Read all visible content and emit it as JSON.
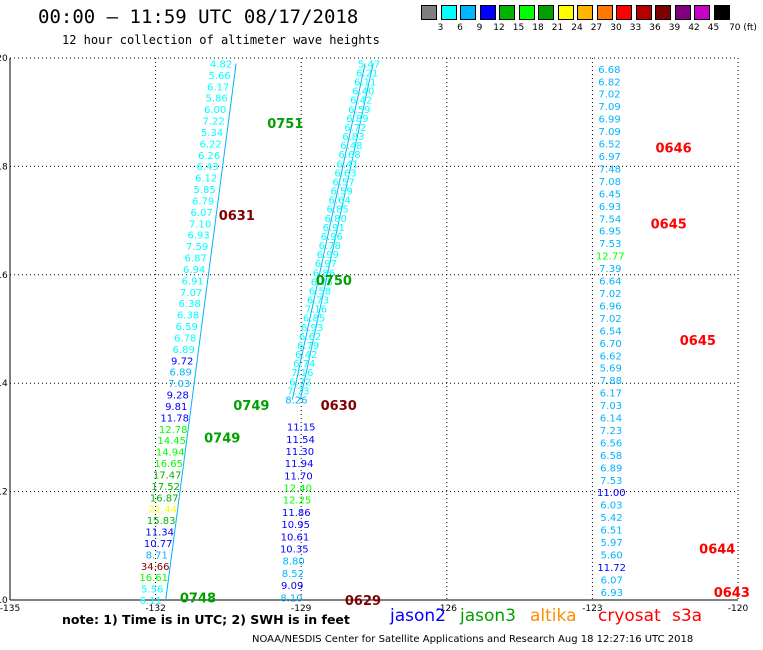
{
  "header": {
    "title": "00:00 – 11:59 UTC 08/17/2018",
    "subtitle": "12 hour collection of altimeter wave heights"
  },
  "legend": {
    "colors": [
      "#7f7f7f",
      "#00ffff",
      "#00b4ff",
      "#0000ff",
      "#00b400",
      "#00ff00",
      "#00a000",
      "#ffff00",
      "#ffb400",
      "#ff7800",
      "#ff0000",
      "#b40000",
      "#7f0000",
      "#800080",
      "#c800c8",
      "#000000"
    ],
    "labels": [
      "3",
      "6",
      "9",
      "12",
      "15",
      "18",
      "21",
      "24",
      "27",
      "30",
      "33",
      "36",
      "39",
      "42",
      "45",
      "70 (ft)"
    ]
  },
  "footer": {
    "note": "note: 1) Time is in UTC; 2) SWH is in feet",
    "satellites": [
      {
        "name": "jason2",
        "color": "#0000ff"
      },
      {
        "name": "jason3",
        "color": "#00a000"
      },
      {
        "name": "altika",
        "color": "#ff8c00"
      },
      {
        "name": "cryosat",
        "color": "#ff0000"
      },
      {
        "name": "s3a",
        "color": "#ff0000"
      }
    ],
    "credit": "NOAA/NESDIS Center for Satellite Applications and Research    Aug 18 12:27:16 UTC 2018"
  },
  "chart_data": {
    "type": "scatter",
    "title": "00:00 – 11:59 UTC 08/17/2018",
    "subtitle": "12 hour collection of altimeter wave heights",
    "xlim": [
      -135,
      -120
    ],
    "ylim": [
      10,
      20
    ],
    "xticks": [
      "-135",
      "-132",
      "-129",
      "-126",
      "-123",
      "-120"
    ],
    "yticks": [
      "10",
      "12",
      "14",
      "16",
      "18",
      "20"
    ],
    "grid": true,
    "tracks": [
      {
        "id": "A",
        "lon0": -130.65,
        "lat0": 19.9,
        "lon1": -132.1,
        "lat1": 10.0,
        "values": [
          "4.82",
          "5.66",
          "6.17",
          "5.86",
          "6.00",
          "7.22",
          "5.34",
          "6.22",
          "6.26",
          "6.43",
          "6.12",
          "5.85",
          "6.79",
          "6.07",
          "7.10",
          "6.93",
          "7.59",
          "6.87",
          "6.94",
          "6.91",
          "7.07",
          "6.38",
          "6.38",
          "6.59",
          "6.78",
          "6.89",
          "9.72",
          "6.89",
          "7.03",
          "9.28",
          "9.81",
          "11.78",
          "12.78",
          "14.45",
          "14.94",
          "16.65",
          "17.47",
          "17.52",
          "16.87",
          "21.44",
          "15.83",
          "11.34",
          "10.77",
          "8.71",
          "34.66",
          "16.61",
          "5.56",
          "6.11"
        ],
        "colors": [
          "#00ffff",
          "#00ffff",
          "#00ffff",
          "#00ffff",
          "#00ffff",
          "#00ffff",
          "#00ffff",
          "#00ffff",
          "#00ffff",
          "#00ffff",
          "#00ffff",
          "#00ffff",
          "#00ffff",
          "#00ffff",
          "#00ffff",
          "#00ffff",
          "#00ffff",
          "#00ffff",
          "#00ffff",
          "#00ffff",
          "#00ffff",
          "#00ffff",
          "#00ffff",
          "#00ffff",
          "#00ffff",
          "#00ffff",
          "#0000ff",
          "#00b4ff",
          "#00b4ff",
          "#0000ff",
          "#0000ff",
          "#0000ff",
          "#00ff00",
          "#00ff00",
          "#00ff00",
          "#00ff00",
          "#00b400",
          "#00b400",
          "#00b400",
          "#ffff00",
          "#00b400",
          "#0000ff",
          "#0000ff",
          "#00b4ff",
          "#7f0000",
          "#00ff00",
          "#00ffff",
          "#00ffff"
        ]
      },
      {
        "id": "B",
        "lon0": -127.6,
        "lat0": 19.9,
        "lon1": -129.1,
        "lat1": 13.7,
        "values": [
          "5.47",
          "6.21",
          "6.11",
          "6.40",
          "6.42",
          "6.59",
          "6.89",
          "6.72",
          "6.83",
          "6.48",
          "6.68",
          "6.41",
          "6.63",
          "6.57",
          "6.59",
          "6.64",
          "6.85",
          "6.80",
          "6.91",
          "6.96",
          "6.78",
          "6.99",
          "6.97",
          "6.86",
          "6.75",
          "6.58",
          "6.73",
          "7.16",
          "6.85",
          "6.93",
          "6.62",
          "6.79",
          "6.42",
          "6.74",
          "7.16",
          "6.72",
          "7.73",
          "8.26"
        ],
        "colors": [
          "#00ffff",
          "#00ffff",
          "#00ffff",
          "#00ffff",
          "#00ffff",
          "#00ffff",
          "#00ffff",
          "#00ffff",
          "#00ffff",
          "#00ffff",
          "#00ffff",
          "#00ffff",
          "#00ffff",
          "#00ffff",
          "#00ffff",
          "#00ffff",
          "#00ffff",
          "#00ffff",
          "#00ffff",
          "#00ffff",
          "#00ffff",
          "#00ffff",
          "#00ffff",
          "#00ffff",
          "#00ffff",
          "#00ffff",
          "#00ffff",
          "#00ffff",
          "#00ffff",
          "#00ffff",
          "#00ffff",
          "#00ffff",
          "#00ffff",
          "#00ffff",
          "#00ffff",
          "#00ffff",
          "#00ffff",
          "#00b4ff"
        ]
      },
      {
        "id": "C",
        "lon0": -129.0,
        "lat0": 13.2,
        "lon1": -129.2,
        "lat1": 10.05,
        "values": [
          "11.15",
          "11.54",
          "11.30",
          "11.94",
          "11.70",
          "12.40",
          "12.25",
          "11.86",
          "10.95",
          "10.61",
          "10.35",
          "8.80",
          "8.52",
          "9.09",
          "8.10"
        ],
        "colors": [
          "#0000ff",
          "#0000ff",
          "#0000ff",
          "#0000ff",
          "#0000ff",
          "#00ff00",
          "#00ff00",
          "#0000ff",
          "#0000ff",
          "#0000ff",
          "#0000ff",
          "#00b4ff",
          "#00b4ff",
          "#0000ff",
          "#00b4ff"
        ]
      },
      {
        "id": "D",
        "lon0": -122.65,
        "lat0": 19.8,
        "lon1": -122.6,
        "lat1": 10.15,
        "values": [
          "6.68",
          "6.82",
          "7.02",
          "7.09",
          "6.99",
          "7.09",
          "6.52",
          "6.97",
          "7.48",
          "7.08",
          "6.45",
          "6.93",
          "7.54",
          "6.95",
          "7.53",
          "12.77",
          "7.39",
          "6.64",
          "7.02",
          "6.96",
          "7.02",
          "6.54",
          "6.70",
          "6.62",
          "5.69",
          "7.88",
          "6.17",
          "7.03",
          "6.14",
          "7.23",
          "6.56",
          "6.58",
          "6.89",
          "7.53",
          "11.00",
          "6.03",
          "5.42",
          "6.51",
          "5.97",
          "5.60",
          "11.72",
          "6.07",
          "6.93"
        ],
        "colors": [
          "#00b4ff",
          "#00b4ff",
          "#00b4ff",
          "#00b4ff",
          "#00b4ff",
          "#00b4ff",
          "#00b4ff",
          "#00b4ff",
          "#00b4ff",
          "#00b4ff",
          "#00b4ff",
          "#00b4ff",
          "#00b4ff",
          "#00b4ff",
          "#00b4ff",
          "#00ff00",
          "#00b4ff",
          "#00b4ff",
          "#00b4ff",
          "#00b4ff",
          "#00b4ff",
          "#00b4ff",
          "#00b4ff",
          "#00b4ff",
          "#00b4ff",
          "#00b4ff",
          "#00b4ff",
          "#00b4ff",
          "#00b4ff",
          "#00b4ff",
          "#00b4ff",
          "#00b4ff",
          "#00b4ff",
          "#00b4ff",
          "#0000ff",
          "#00b4ff",
          "#00b4ff",
          "#00b4ff",
          "#00b4ff",
          "#00b4ff",
          "#0000ff",
          "#00b4ff",
          "#00b4ff"
        ]
      }
    ],
    "annotations": [
      {
        "text": "0751",
        "lon": -129.7,
        "lat": 18.8,
        "color": "#00a000"
      },
      {
        "text": "0631",
        "lon": -130.7,
        "lat": 17.1,
        "color": "#7f0000"
      },
      {
        "text": "0750",
        "lon": -128.7,
        "lat": 15.9,
        "color": "#00a000"
      },
      {
        "text": "0749",
        "lon": -130.4,
        "lat": 13.6,
        "color": "#00a000"
      },
      {
        "text": "0749",
        "lon": -131.0,
        "lat": 13.0,
        "color": "#00a000"
      },
      {
        "text": "0630",
        "lon": -128.6,
        "lat": 13.6,
        "color": "#7f0000"
      },
      {
        "text": "0748",
        "lon": -131.5,
        "lat": 10.05,
        "color": "#00a000"
      },
      {
        "text": "0629",
        "lon": -128.1,
        "lat": 10.0,
        "color": "#7f0000"
      },
      {
        "text": "0646",
        "lon": -121.7,
        "lat": 18.35,
        "color": "#ff0000"
      },
      {
        "text": "0645",
        "lon": -121.8,
        "lat": 16.95,
        "color": "#ff0000"
      },
      {
        "text": "0645",
        "lon": -121.2,
        "lat": 14.8,
        "color": "#ff0000"
      },
      {
        "text": "0644",
        "lon": -120.8,
        "lat": 10.95,
        "color": "#ff0000"
      },
      {
        "text": "0643",
        "lon": -120.5,
        "lat": 10.15,
        "color": "#ff0000"
      }
    ]
  }
}
